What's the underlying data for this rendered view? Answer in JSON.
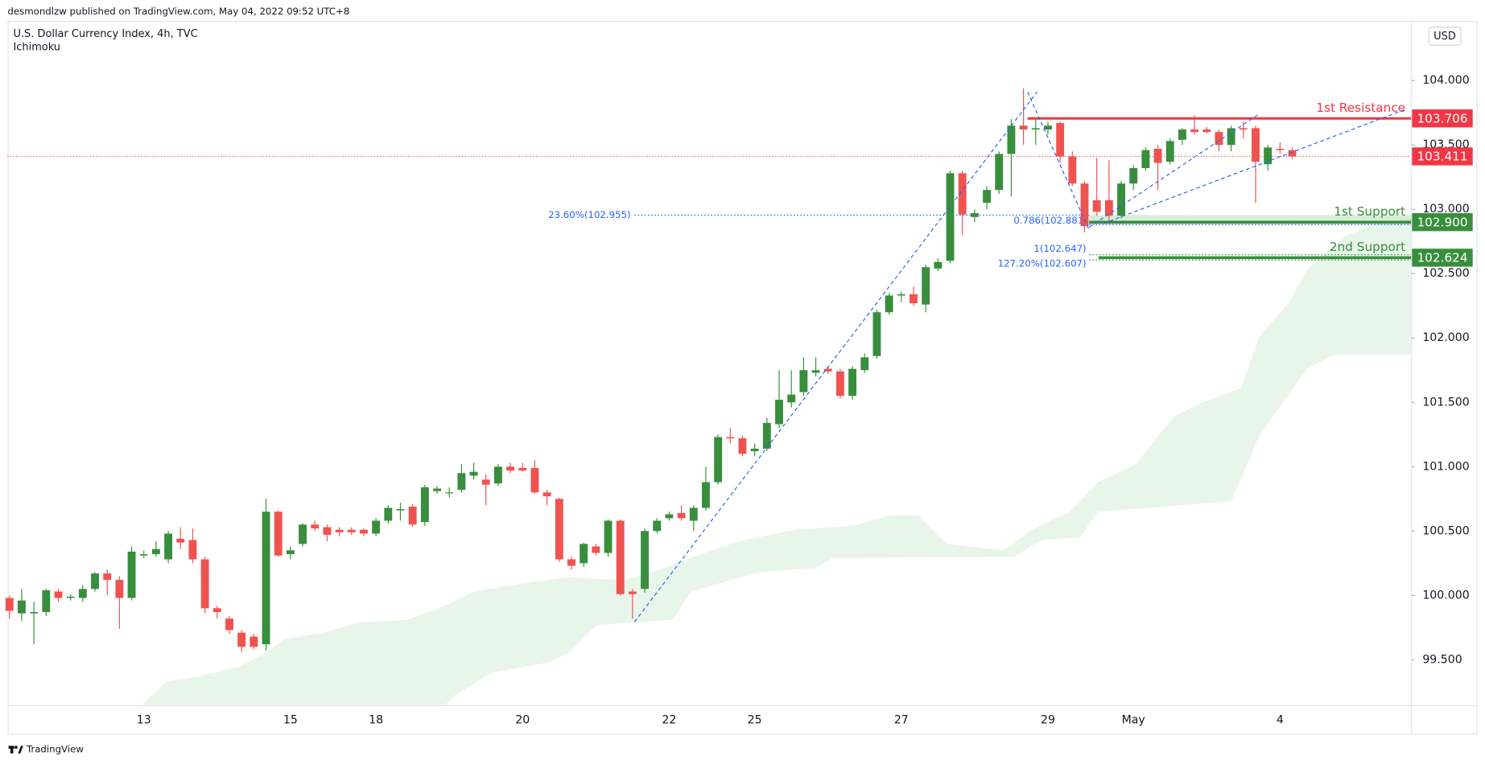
{
  "header": {
    "text": "desmondlzw published on TradingView.com, May 04, 2022 09:52 UTC+8"
  },
  "footer": {
    "text": "TradingView"
  },
  "chart_data": {
    "type": "candlestick",
    "title": "U.S. Dollar Currency Index, 4h, TVC",
    "subtitle": "Ichimoku",
    "currency": "USD",
    "up_color": "#388e3c",
    "down_color": "#ef5350",
    "grid": false,
    "ylim": [
      99.147,
      104.463
    ],
    "yticks": [
      {
        "value": 99.5,
        "label": "99.500"
      },
      {
        "value": 100,
        "label": "100.000"
      },
      {
        "value": 100.5,
        "label": "100.500"
      },
      {
        "value": 101,
        "label": "101.000"
      },
      {
        "value": 101.5,
        "label": "101.500"
      },
      {
        "value": 102,
        "label": "102.000"
      },
      {
        "value": 102.5,
        "label": "102.500"
      },
      {
        "value": 103,
        "label": "103.000"
      },
      {
        "value": 103.5,
        "label": "103.500"
      },
      {
        "value": 104,
        "label": "104.000"
      }
    ],
    "xlim": [
      -0.155,
      114.73
    ],
    "categories": [
      null,
      null,
      null,
      null,
      null,
      null,
      null,
      null,
      null,
      null,
      null,
      "13",
      null,
      null,
      null,
      null,
      null,
      null,
      null,
      null,
      null,
      null,
      null,
      "15",
      null,
      null,
      null,
      null,
      null,
      null,
      "18",
      null,
      null,
      null,
      null,
      null,
      null,
      null,
      null,
      null,
      null,
      null,
      "20",
      null,
      null,
      null,
      null,
      null,
      null,
      null,
      null,
      null,
      null,
      null,
      "22",
      null,
      null,
      null,
      null,
      null,
      null,
      "25",
      null,
      null,
      null,
      null,
      null,
      null,
      null,
      null,
      null,
      null,
      null,
      "27",
      null,
      null,
      null,
      null,
      null,
      null,
      null,
      null,
      null,
      null,
      null,
      "29",
      null,
      null,
      null,
      null,
      null,
      null,
      "May",
      null,
      null,
      null,
      null,
      null,
      null,
      null,
      null,
      null,
      null,
      null,
      "4",
      null
    ],
    "open": [
      99.98,
      99.86,
      99.86,
      99.87,
      100.03,
      99.98,
      99.98,
      100.05,
      100.17,
      100.12,
      99.98,
      100.31,
      100.32,
      100.28,
      100.44,
      100.43,
      100.28,
      99.9,
      99.82,
      99.71,
      99.68,
      99.62,
      100.65,
      100.32,
      100.4,
      100.55,
      100.53,
      100.51,
      100.51,
      100.51,
      100.48,
      100.58,
      100.66,
      100.69,
      100.57,
      100.81,
      100.8,
      100.82,
      100.93,
      100.9,
      100.87,
      101.0,
      100.99,
      100.99,
      100.8,
      100.75,
      100.28,
      100.25,
      100.38,
      100.33,
      100.58,
      100.03,
      100.05,
      100.5,
      100.6,
      100.64,
      100.58,
      100.68,
      100.88,
      101.23,
      101.22,
      101.12,
      101.14,
      101.33,
      101.5,
      101.58,
      101.73,
      101.76,
      101.74,
      101.55,
      101.75,
      101.86,
      102.2,
      102.33,
      102.34,
      102.26,
      102.54,
      102.6,
      103.28,
      102.94,
      103.05,
      103.15,
      103.43,
      103.65,
      103.62,
      103.62,
      103.67,
      103.41,
      103.2,
      103.07,
      103.07,
      102.95,
      103.2,
      103.32,
      103.47,
      103.37,
      103.54,
      103.62,
      103.62,
      103.6,
      103.5,
      103.63,
      103.63,
      103.35,
      103.47,
      103.46
    ],
    "high": [
      100.0,
      100.05,
      99.95,
      100.05,
      100.05,
      100.01,
      100.08,
      100.18,
      100.2,
      100.15,
      100.38,
      100.35,
      100.42,
      100.5,
      100.53,
      100.52,
      100.3,
      99.92,
      99.84,
      99.73,
      99.7,
      100.75,
      100.66,
      100.38,
      100.56,
      100.58,
      100.55,
      100.53,
      100.53,
      100.52,
      100.6,
      100.7,
      100.72,
      100.71,
      100.86,
      100.85,
      100.84,
      101.02,
      101.03,
      100.94,
      101.02,
      101.03,
      101.03,
      101.05,
      100.82,
      100.76,
      100.3,
      100.41,
      100.4,
      100.59,
      100.59,
      100.05,
      100.52,
      100.6,
      100.65,
      100.7,
      100.7,
      101.0,
      101.25,
      101.3,
      101.24,
      101.18,
      101.38,
      101.75,
      101.75,
      101.85,
      101.85,
      101.78,
      101.76,
      101.78,
      101.88,
      102.22,
      102.35,
      102.36,
      102.4,
      102.57,
      102.62,
      103.3,
      103.3,
      103.0,
      103.18,
      103.45,
      103.7,
      103.94,
      103.7,
      103.68,
      103.68,
      103.45,
      103.22,
      103.4,
      103.38,
      103.22,
      103.34,
      103.48,
      103.5,
      103.55,
      103.63,
      103.73,
      103.64,
      103.62,
      103.65,
      103.68,
      103.65,
      103.5,
      103.52,
      103.48
    ],
    "low": [
      99.82,
      99.8,
      99.62,
      99.84,
      99.95,
      99.96,
      99.95,
      100.03,
      100.0,
      99.74,
      99.96,
      100.29,
      100.3,
      100.25,
      100.36,
      100.25,
      99.86,
      99.82,
      99.7,
      99.56,
      99.58,
      99.57,
      100.3,
      100.28,
      100.38,
      100.5,
      100.42,
      100.46,
      100.47,
      100.46,
      100.46,
      100.56,
      100.58,
      100.53,
      100.54,
      100.79,
      100.76,
      100.8,
      100.9,
      100.7,
      100.85,
      100.95,
      100.96,
      100.79,
      100.7,
      100.26,
      100.2,
      100.22,
      100.31,
      100.3,
      100.0,
      99.82,
      100.02,
      100.48,
      100.58,
      100.58,
      100.5,
      100.66,
      100.86,
      101.18,
      101.08,
      101.08,
      101.12,
      101.3,
      101.46,
      101.55,
      101.7,
      101.72,
      101.53,
      101.52,
      101.73,
      101.84,
      102.18,
      102.28,
      102.25,
      102.2,
      102.52,
      102.58,
      102.8,
      102.9,
      103.0,
      103.12,
      103.1,
      103.5,
      103.5,
      103.58,
      103.36,
      103.18,
      102.82,
      102.95,
      102.9,
      102.93,
      103.15,
      103.3,
      103.15,
      103.35,
      103.5,
      103.58,
      103.59,
      103.45,
      103.45,
      103.55,
      103.05,
      103.3,
      103.43,
      103.39
    ],
    "close": [
      99.88,
      99.96,
      99.87,
      100.04,
      99.98,
      99.99,
      100.05,
      100.17,
      100.12,
      99.98,
      100.34,
      100.32,
      100.36,
      100.48,
      100.41,
      100.28,
      99.9,
      99.87,
      99.73,
      99.6,
      99.6,
      100.65,
      100.31,
      100.35,
      100.55,
      100.52,
      100.47,
      100.49,
      100.49,
      100.48,
      100.58,
      100.68,
      100.67,
      100.55,
      100.84,
      100.83,
      100.8,
      100.95,
      100.96,
      100.86,
      101.0,
      100.97,
      100.97,
      100.8,
      100.77,
      100.28,
      100.23,
      100.4,
      100.33,
      100.58,
      100.01,
      100.01,
      100.5,
      100.58,
      100.63,
      100.6,
      100.68,
      100.88,
      101.23,
      101.22,
      101.1,
      101.14,
      101.34,
      101.52,
      101.56,
      101.75,
      101.75,
      101.74,
      101.55,
      101.76,
      101.85,
      102.2,
      102.33,
      102.34,
      102.27,
      102.55,
      102.59,
      103.28,
      102.96,
      102.97,
      103.15,
      103.43,
      103.65,
      103.62,
      103.63,
      103.65,
      103.41,
      103.2,
      102.87,
      102.98,
      102.95,
      103.2,
      103.32,
      103.46,
      103.36,
      103.53,
      103.62,
      103.6,
      103.6,
      103.5,
      103.63,
      103.62,
      103.37,
      103.48,
      103.46,
      103.41
    ],
    "cloud": {
      "color": "#e8f5e9",
      "x_top": [
        10.85,
        12.8,
        15.5,
        18.6,
        20.9,
        22.5,
        25.6,
        28.7,
        32.6,
        35.7,
        38,
        42.6,
        45.7,
        50.4,
        53.5,
        56.6,
        59.7,
        64.3,
        69,
        72.1,
        74.4,
        76.7,
        81.4,
        83.7,
        86.8,
        89.1,
        92.2,
        95.3,
        97.7,
        100.8,
        102.3,
        104.7,
        106.2,
        109.3,
        111.6,
        114.7
      ],
      "top": [
        99.15,
        99.33,
        99.37,
        99.44,
        99.55,
        99.66,
        99.71,
        99.79,
        99.81,
        99.92,
        100.03,
        100.1,
        100.14,
        100.12,
        100.21,
        100.32,
        100.42,
        100.51,
        100.54,
        100.62,
        100.62,
        100.4,
        100.35,
        100.51,
        100.65,
        100.88,
        101.02,
        101.39,
        101.5,
        101.61,
        102.01,
        102.27,
        102.53,
        102.79,
        102.88,
        102.93
      ],
      "x_bottom": [
        10.85,
        35.7,
        36.4,
        39.5,
        44.2,
        45.7,
        48.1,
        54.3,
        55.8,
        61.2,
        65.9,
        67.4,
        82.2,
        84.5,
        87.6,
        89.1,
        94.6,
        100,
        102.3,
        106.2,
        108.5,
        114.7
      ],
      "bottom": [
        99.15,
        99.15,
        99.22,
        99.4,
        99.48,
        99.55,
        99.77,
        99.81,
        100.03,
        100.18,
        100.21,
        100.29,
        100.3,
        100.43,
        100.45,
        100.65,
        100.69,
        100.73,
        101.24,
        101.76,
        101.87,
        101.87
      ]
    },
    "last_price": {
      "value": 103.411,
      "color": "#f23645"
    },
    "levels": [
      {
        "name": "1st Resistance",
        "value": 103.706,
        "color": "#f23645"
      },
      {
        "name": "1st Support",
        "value": 102.9,
        "value_label": "102.900",
        "color": "#388e3c"
      },
      {
        "name": "2nd Support",
        "value": 102.624,
        "color": "#388e3c"
      }
    ],
    "fib": [
      {
        "label": "23.60%(102.955)",
        "value": 102.955
      },
      {
        "label": "0.786(102.881)",
        "value": 102.881
      },
      {
        "label": "1(102.647)",
        "value": 102.647
      },
      {
        "label": "127.20%(102.607)",
        "value": 102.607
      }
    ]
  }
}
